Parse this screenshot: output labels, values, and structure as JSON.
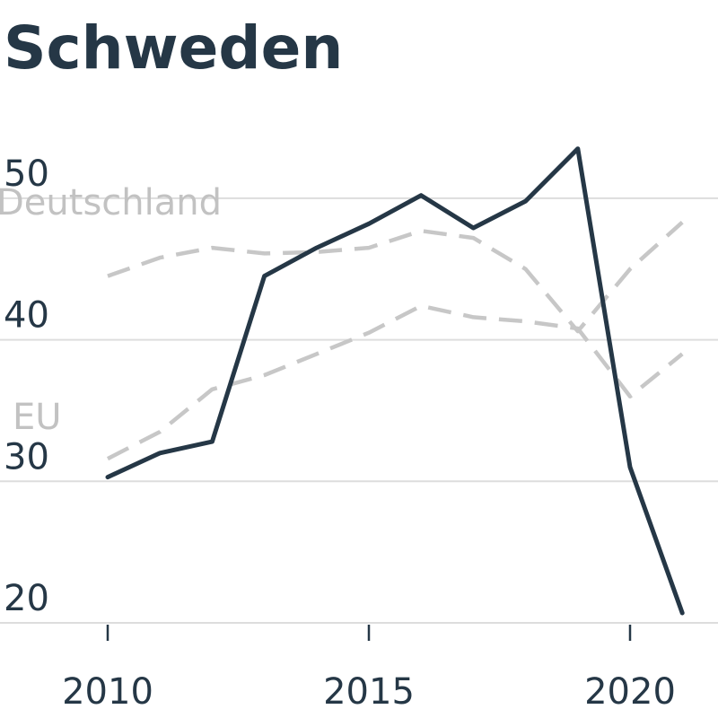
{
  "chart_data": {
    "type": "line",
    "title": "Schweden",
    "xlabel": "",
    "ylabel": "",
    "xlim": [
      2008.5,
      2022.3
    ],
    "ylim": [
      20,
      55
    ],
    "grid": true,
    "y_ticks": [
      20,
      30,
      40,
      50
    ],
    "x_ticks": [
      2010,
      2015,
      2020
    ],
    "x": [
      2010,
      2011,
      2012,
      2013,
      2014,
      2015,
      2016,
      2017,
      2018,
      2019,
      2020,
      2021
    ],
    "series": [
      {
        "name": "",
        "style": "solid",
        "color": "#253746",
        "values": [
          30.3,
          32.0,
          32.8,
          44.5,
          46.5,
          48.2,
          50.2,
          47.9,
          49.8,
          53.5,
          31.0,
          20.7
        ]
      },
      {
        "name": "Deutschland",
        "style": "dashed",
        "color": "#c7c7c7",
        "values": [
          44.5,
          45.8,
          46.5,
          46.1,
          46.2,
          46.5,
          47.7,
          47.2,
          45.0,
          40.6,
          45.0,
          48.3
        ]
      },
      {
        "name": "EU",
        "style": "dashed",
        "color": "#c7c7c7",
        "values": [
          31.6,
          33.5,
          36.5,
          37.5,
          39.0,
          40.5,
          42.4,
          41.6,
          41.3,
          40.8,
          36.0,
          39.0
        ]
      }
    ],
    "colors": {
      "title": "#253746",
      "tick": "#253746",
      "grid": "#dddddd",
      "label": "#c2c2c2"
    }
  }
}
